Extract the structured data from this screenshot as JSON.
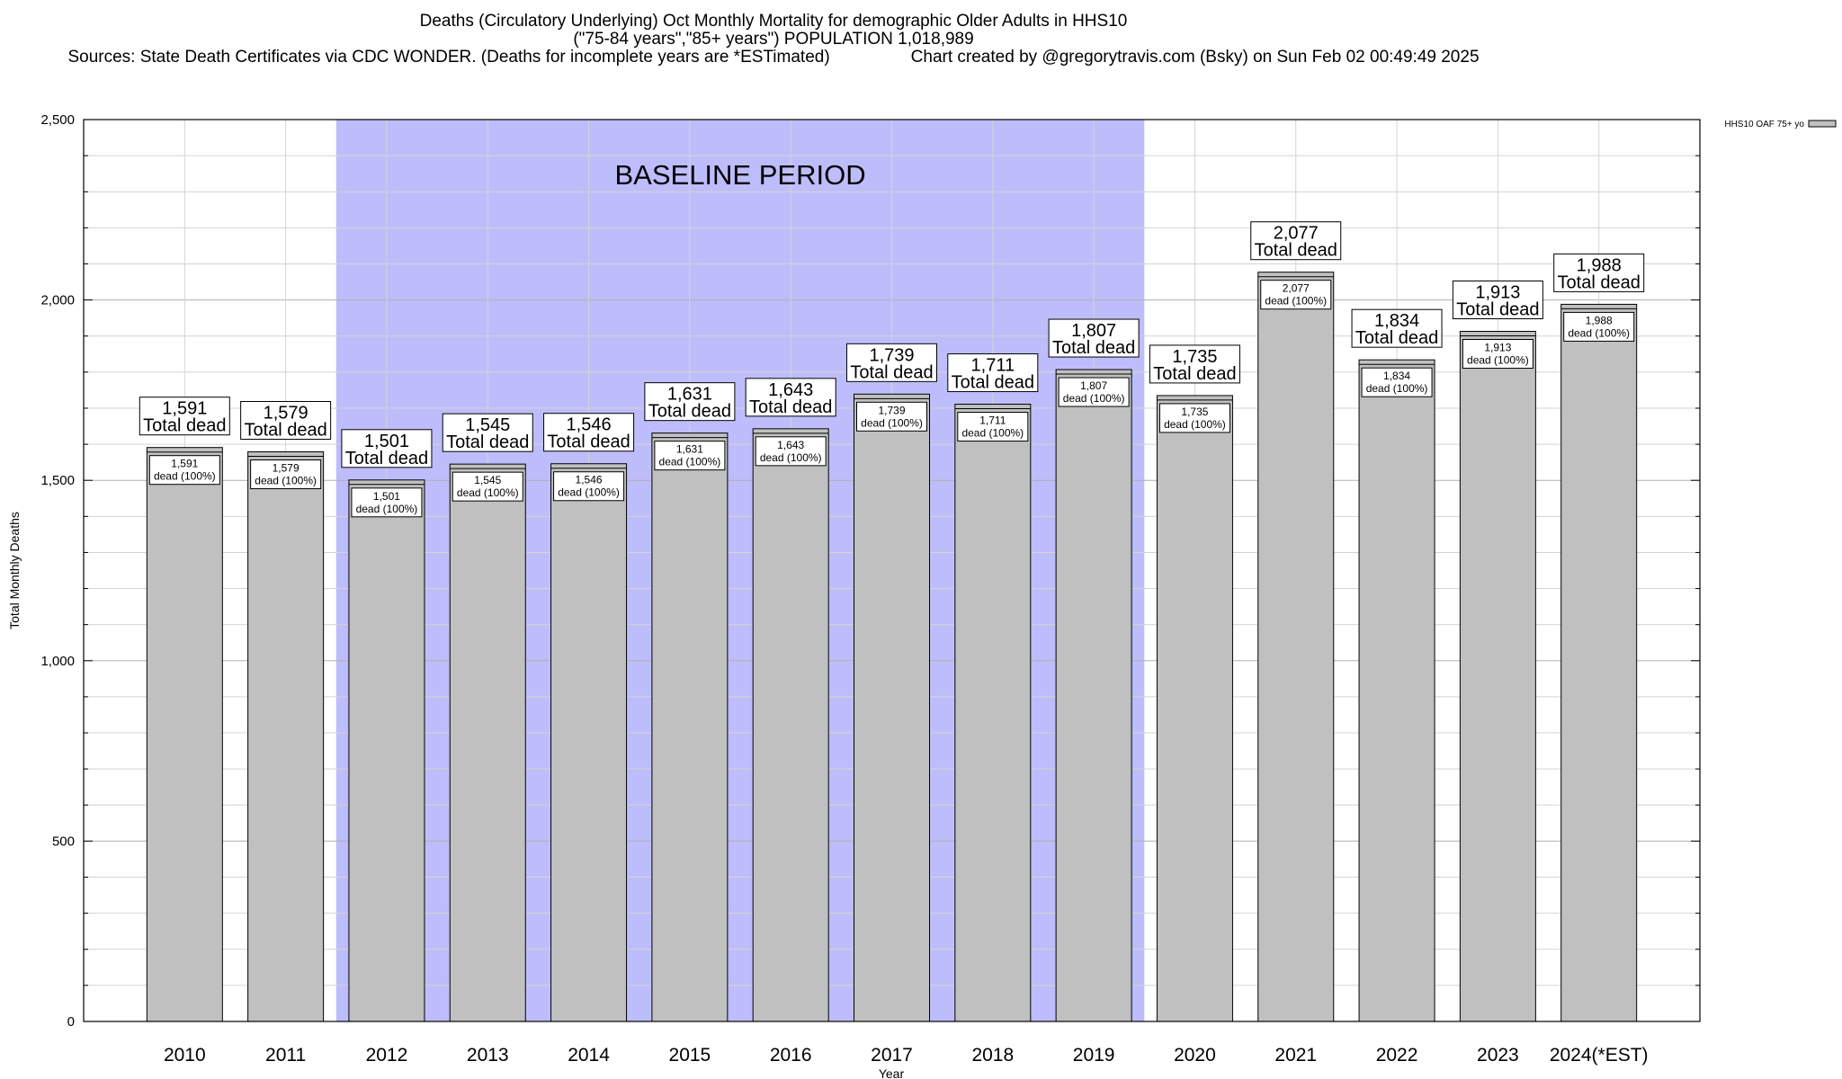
{
  "chart_data": {
    "type": "bar",
    "title": "Deaths (Circulatory Underlying) Oct Monthly Mortality for demographic Older Adults in HHS10",
    "subtitle": "(\"75-84 years\",\"85+ years\") POPULATION 1,018,989",
    "sources": "Sources: State Death Certificates via CDC WONDER. (Deaths for incomplete years are *ESTimated)",
    "credit": "Chart created by @gregorytravis.com (Bsky) on Sun Feb 02 00:49:49 2025",
    "xlabel": "Year",
    "ylabel": "Total Monthly Deaths",
    "ylim": [
      0,
      2500
    ],
    "yticks": [
      0,
      500,
      1000,
      1500,
      2000,
      2500
    ],
    "ytick_labels": [
      "0",
      "500",
      "1,000",
      "1,500",
      "2,000",
      "2,500"
    ],
    "grid": true,
    "legend": {
      "placement": "top-right",
      "entries": [
        "HHS10 OAF 75+ yo"
      ]
    },
    "baseline": {
      "label": "BASELINE PERIOD",
      "from": "2012",
      "to": "2019",
      "color": "#bdbdfb"
    },
    "bar_color": "#c0c0c0",
    "categories": [
      "2010",
      "2011",
      "2012",
      "2013",
      "2014",
      "2015",
      "2016",
      "2017",
      "2018",
      "2019",
      "2020",
      "2021",
      "2022",
      "2023",
      "2024(*EST)"
    ],
    "series": [
      {
        "name": "HHS10 OAF 75+ yo",
        "values": [
          1591,
          1579,
          1501,
          1545,
          1546,
          1631,
          1643,
          1739,
          1711,
          1807,
          1735,
          2077,
          1834,
          1913,
          1988
        ]
      }
    ],
    "total_labels": [
      "1,591",
      "1,579",
      "1,501",
      "1,545",
      "1,546",
      "1,631",
      "1,643",
      "1,739",
      "1,711",
      "1,807",
      "1,735",
      "2,077",
      "1,834",
      "1,913",
      "1,988"
    ],
    "total_suffix": "Total dead",
    "inner_suffix": "dead (100%)"
  }
}
